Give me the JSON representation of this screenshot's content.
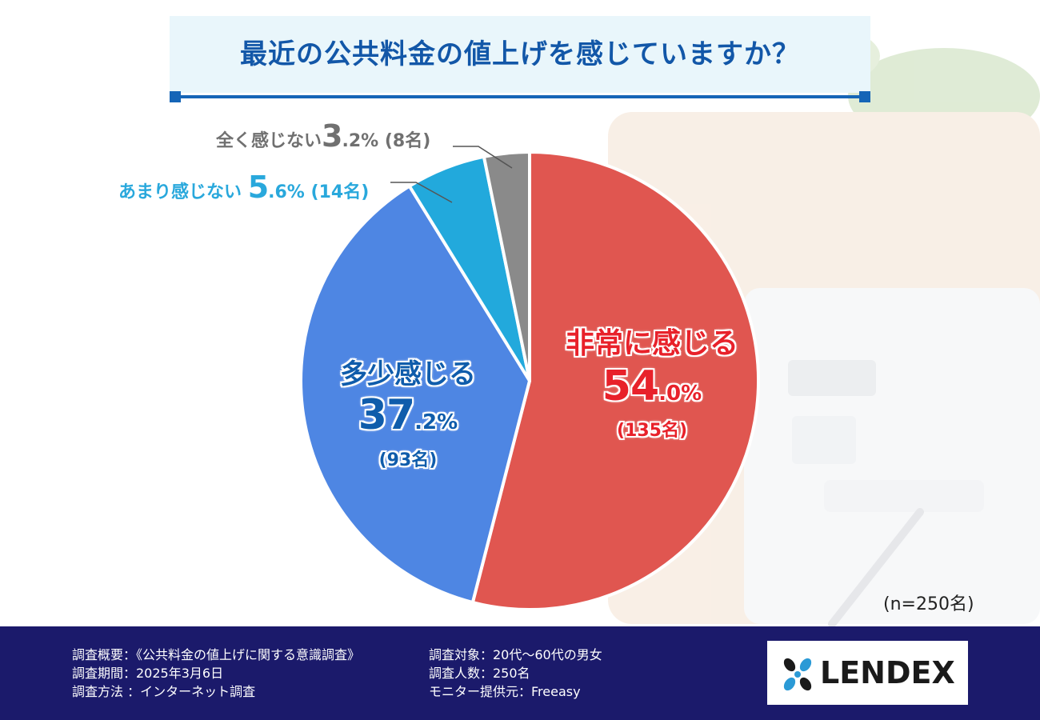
{
  "title": "最近の公共料金の値上げを感じていますか？",
  "chart_data": {
    "type": "pie",
    "title": "最近の公共料金の値上げを感じていますか？",
    "total_label": "(n=250名)",
    "slices": [
      {
        "label": "非常に感じる",
        "value": 54.0,
        "count": 135,
        "pct_int": "54",
        "pct_dec": ".0%",
        "count_text": "(135名)",
        "color": "#e05650"
      },
      {
        "label": "多少感じる",
        "value": 37.2,
        "count": 93,
        "pct_int": "37",
        "pct_dec": ".2%",
        "count_text": "(93名)",
        "color": "#4e86e3"
      },
      {
        "label": "あまり感じない",
        "value": 5.6,
        "count": 14,
        "pct_int": "5",
        "pct_dec": ".6%",
        "count_text": "(14名)",
        "color": "#22a9dc"
      },
      {
        "label": "全く感じない",
        "value": 3.2,
        "count": 8,
        "pct_int": "3",
        "pct_dec": ".2%",
        "count_text": "(8名)",
        "color": "#8a8a8a"
      }
    ]
  },
  "footer": {
    "left": [
      "調査概要：《公共料金の値上げに関する意識調査》",
      "調査期間：2025年3月6日",
      "調査方法 ：インターネット調査"
    ],
    "right": [
      "調査対象：20代〜60代の男女",
      "調査人数：250名",
      "モニター提供元：Freeasy"
    ]
  },
  "logo": {
    "text": "LENDEX",
    "colors": [
      "#1a1a1a",
      "#2b9ad6"
    ]
  }
}
